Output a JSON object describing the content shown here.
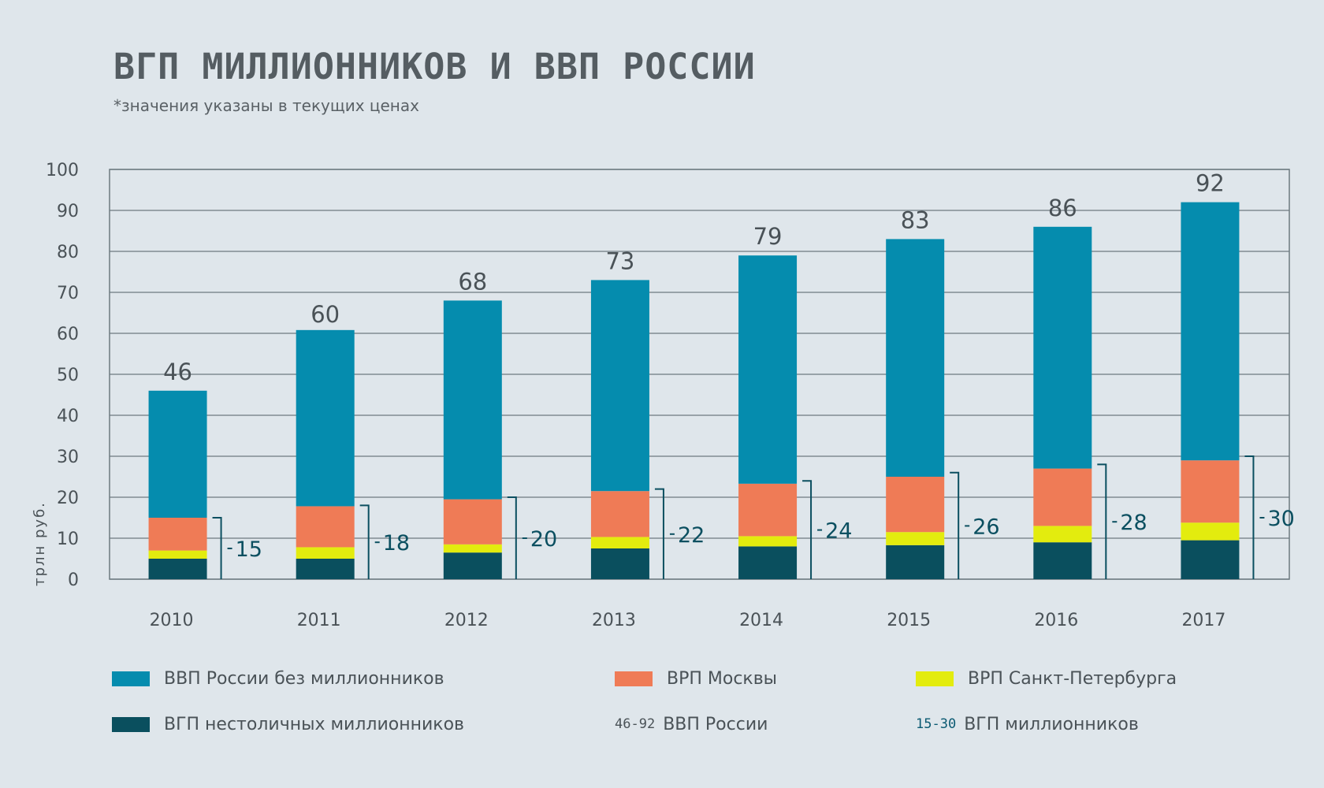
{
  "title": "ВГП МИЛЛИОННИКОВ И ВВП РОССИИ",
  "subtitle": "*значения указаны в текущих ценах",
  "chart_data": {
    "type": "bar",
    "stacked": true,
    "categories": [
      "2010",
      "2011",
      "2012",
      "2013",
      "2014",
      "2015",
      "2016",
      "2017"
    ],
    "ylabel": "трлн руб.",
    "ylim": [
      0,
      100
    ],
    "yticks": [
      0,
      10,
      20,
      30,
      40,
      50,
      60,
      70,
      80,
      90,
      100
    ],
    "grid": true,
    "series": [
      {
        "name": "ВГП нестоличных миллионников",
        "color": "#0a4f5e",
        "values": [
          5.0,
          5.0,
          6.5,
          7.5,
          8.0,
          8.3,
          9.0,
          9.5
        ]
      },
      {
        "name": "ВРП Санкт-Петербурга",
        "color": "#e3ec0e",
        "values": [
          2.0,
          2.8,
          2.0,
          2.8,
          2.5,
          3.2,
          4.0,
          4.3
        ]
      },
      {
        "name": "ВРП Москвы",
        "color": "#ef7b56",
        "values": [
          8.0,
          10.0,
          11.0,
          11.2,
          12.8,
          13.5,
          14.0,
          15.2
        ]
      },
      {
        "name": "ВВП России без миллионников",
        "color": "#058cae",
        "values": [
          31.0,
          43.0,
          48.5,
          51.5,
          55.7,
          58.0,
          59.0,
          63.0
        ]
      }
    ],
    "totals": {
      "name": "ВВП России",
      "values": [
        46,
        60,
        68,
        73,
        79,
        83,
        86,
        92
      ]
    },
    "bracket": {
      "name": "ВГП миллионников",
      "values": [
        15,
        18,
        20,
        22,
        24,
        26,
        28,
        30
      ]
    }
  },
  "legend": [
    {
      "label": "ВВП России без миллионников",
      "color": "#058cae"
    },
    {
      "label": "ВРП Москвы",
      "color": "#ef7b56"
    },
    {
      "label": "ВРП Санкт-Петербурга",
      "color": "#e3ec0e"
    },
    {
      "label": "ВГП нестоличных миллионников",
      "color": "#0a4f5e"
    },
    {
      "label": "ВВП России",
      "swatch_text": "46-92"
    },
    {
      "label": "ВГП миллионников",
      "swatch_text": "15-30"
    }
  ]
}
